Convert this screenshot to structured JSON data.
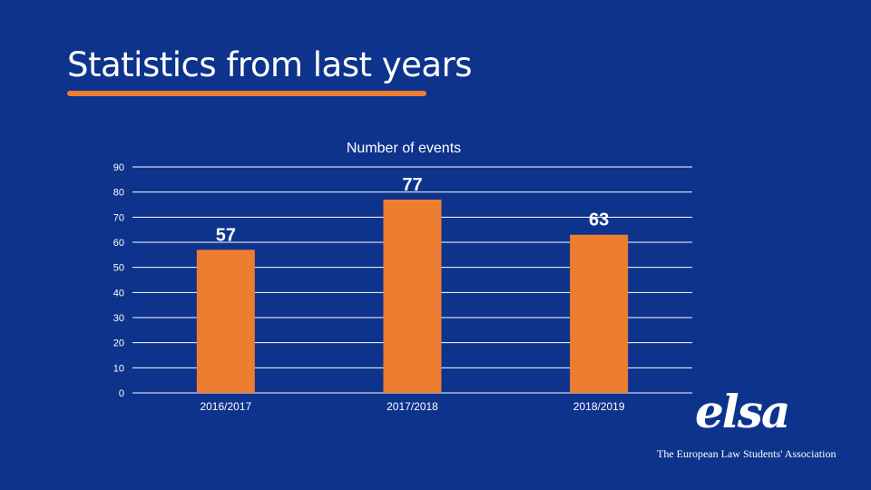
{
  "slide": {
    "title": "Statistics from last years"
  },
  "chart_data": {
    "type": "bar",
    "title": "Number of events",
    "categories": [
      "2016/2017",
      "2017/2018",
      "2018/2019"
    ],
    "values": [
      57,
      77,
      63
    ],
    "ylim": [
      0,
      90
    ],
    "yticks": [
      0,
      10,
      20,
      30,
      40,
      50,
      60,
      70,
      80,
      90
    ],
    "xlabel": "",
    "ylabel": "",
    "grid": true,
    "bar_color": "#ed7d31",
    "data_labels": true
  },
  "logo": {
    "mark_text": "elsa",
    "caption": "The European Law Students' Association"
  },
  "colors": {
    "background": "#0d338c",
    "accent": "#ed7d31",
    "text": "#ffffff"
  }
}
